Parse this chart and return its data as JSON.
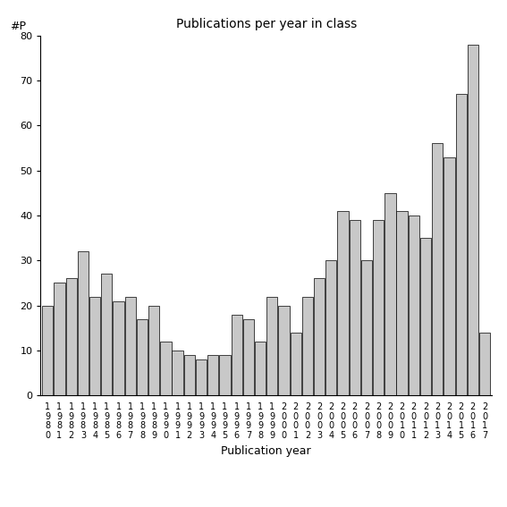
{
  "title": "Publications per year in class",
  "xlabel": "Publication year",
  "ylabel": "#P",
  "years": [
    1980,
    1981,
    1982,
    1983,
    1984,
    1985,
    1986,
    1987,
    1988,
    1989,
    1990,
    1991,
    1992,
    1993,
    1994,
    1995,
    1996,
    1997,
    1998,
    1999,
    2000,
    2001,
    2002,
    2003,
    2004,
    2005,
    2006,
    2007,
    2008,
    2009,
    2010,
    2011,
    2012,
    2013,
    2014,
    2015,
    2016,
    2017
  ],
  "values": [
    20,
    25,
    26,
    32,
    22,
    27,
    21,
    22,
    17,
    20,
    12,
    10,
    9,
    8,
    9,
    9,
    18,
    17,
    12,
    22,
    20,
    14,
    22,
    26,
    30,
    41,
    39,
    30,
    39,
    45,
    41,
    40,
    35,
    56,
    53,
    67,
    78,
    14
  ],
  "bar_color": "#c8c8c8",
  "bar_edgecolor": "#000000",
  "ylim": [
    0,
    80
  ],
  "yticks": [
    0,
    10,
    20,
    30,
    40,
    50,
    60,
    70,
    80
  ],
  "title_fontsize": 10,
  "axis_label_fontsize": 9,
  "tick_fontsize": 7,
  "ylabel_fontsize": 9,
  "background_color": "#ffffff"
}
